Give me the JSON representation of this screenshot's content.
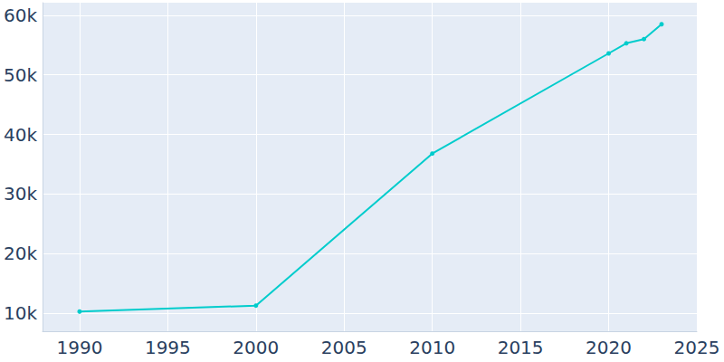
{
  "chart_data": {
    "type": "line",
    "x": [
      1990,
      2000,
      2010,
      2020,
      2021,
      2022,
      2023
    ],
    "values": [
      10300,
      11300,
      36800,
      53600,
      55300,
      56000,
      58500
    ],
    "color": "#00cccc",
    "marker": "circle",
    "xlim": [
      1987.9,
      2025
    ],
    "xticks": [
      1990,
      1995,
      2000,
      2005,
      2010,
      2015,
      2020,
      2025
    ],
    "ylim": [
      7000,
      62100
    ],
    "yticks": [
      {
        "value": 10000,
        "label": "10k"
      },
      {
        "value": 20000,
        "label": "20k"
      },
      {
        "value": 30000,
        "label": "30k"
      },
      {
        "value": 40000,
        "label": "40k"
      },
      {
        "value": 50000,
        "label": "50k"
      },
      {
        "value": 60000,
        "label": "60k"
      }
    ],
    "grid": true
  }
}
